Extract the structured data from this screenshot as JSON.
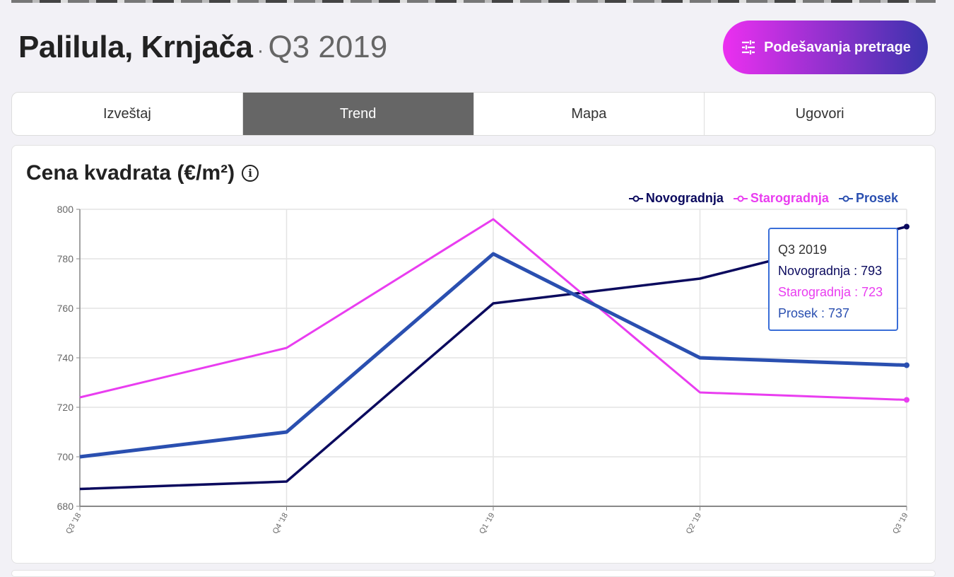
{
  "header": {
    "location": "Palilula, Krnjača",
    "separator": "·",
    "period": "Q3 2019",
    "settings_button": "Podešavanja pretrage"
  },
  "tabs": [
    {
      "label": "Izveštaj"
    },
    {
      "label": "Trend",
      "active": true
    },
    {
      "label": "Mapa"
    },
    {
      "label": "Ugovori"
    }
  ],
  "card": {
    "title": "Cena kvadrata (€/m²)",
    "info_icon": "i"
  },
  "tooltip": {
    "title": "Q3 2019",
    "lines": [
      "Novogradnja : 793",
      "Starogradnja : 723",
      "Prosek : 737"
    ]
  },
  "chart_data": {
    "type": "line",
    "title": "Cena kvadrata (€/m²)",
    "categories": [
      "Q3 '18",
      "Q4 '18",
      "Q1 '19",
      "Q2 '19",
      "Q3 '19"
    ],
    "ylim": [
      680,
      800
    ],
    "yticks": [
      680,
      700,
      720,
      740,
      760,
      780,
      800
    ],
    "grid": true,
    "legend_position": "top-right",
    "series": [
      {
        "name": "Novogradnja",
        "color": "#0b0a5e",
        "values": [
          687,
          690,
          762,
          772,
          793
        ]
      },
      {
        "name": "Starogradnja",
        "color": "#e93df0",
        "values": [
          724,
          744,
          796,
          726,
          723
        ]
      },
      {
        "name": "Prosek",
        "color": "#2a4fb0",
        "values": [
          700,
          710,
          782,
          740,
          737
        ]
      }
    ]
  }
}
